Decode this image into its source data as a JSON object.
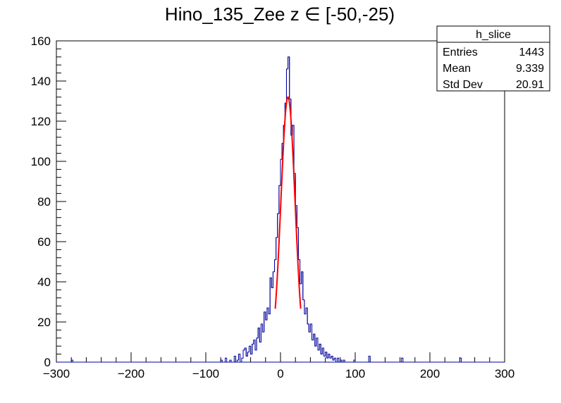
{
  "chart_data": {
    "type": "histogram",
    "title": "Hino_135_Zee z  ∈ [-50,-25)",
    "xlabel": "",
    "ylabel": "",
    "xlim": [
      -300,
      300
    ],
    "ylim": [
      0,
      160
    ],
    "x_ticks": [
      -300,
      -200,
      -100,
      0,
      100,
      200,
      300
    ],
    "x_tick_labels": [
      "−300",
      "−200",
      "−100",
      "0",
      "100",
      "200",
      "300"
    ],
    "y_ticks": [
      0,
      20,
      40,
      60,
      80,
      100,
      120,
      140,
      160
    ],
    "y_tick_labels": [
      "0",
      "20",
      "40",
      "60",
      "80",
      "100",
      "120",
      "140",
      "160"
    ],
    "histogram_color": "#000099",
    "fit_color": "#ff0000",
    "stats_box": {
      "name": "h_slice",
      "rows": [
        {
          "label": "Entries",
          "value": "1443"
        },
        {
          "label": "Mean",
          "value": "9.339"
        },
        {
          "label": "Std Dev",
          "value": "20.91"
        }
      ]
    },
    "bin_edges_range": [
      -300,
      300
    ],
    "bin_width": 2,
    "bins": [
      {
        "x": -280,
        "y": 1
      },
      {
        "x": -79,
        "y": 1
      },
      {
        "x": -73,
        "y": 2
      },
      {
        "x": -68,
        "y": 1
      },
      {
        "x": -62,
        "y": 3
      },
      {
        "x": -58,
        "y": 1
      },
      {
        "x": -55,
        "y": 4
      },
      {
        "x": -52,
        "y": 2
      },
      {
        "x": -50,
        "y": 6
      },
      {
        "x": -47,
        "y": 7
      },
      {
        "x": -45,
        "y": 3
      },
      {
        "x": -43,
        "y": 5
      },
      {
        "x": -41,
        "y": 8
      },
      {
        "x": -39,
        "y": 4
      },
      {
        "x": -37,
        "y": 9
      },
      {
        "x": -35,
        "y": 11
      },
      {
        "x": -33,
        "y": 6
      },
      {
        "x": -31,
        "y": 12
      },
      {
        "x": -29,
        "y": 17
      },
      {
        "x": -27,
        "y": 10
      },
      {
        "x": -25,
        "y": 19
      },
      {
        "x": -23,
        "y": 15
      },
      {
        "x": -21,
        "y": 25
      },
      {
        "x": -19,
        "y": 21
      },
      {
        "x": -17,
        "y": 27
      },
      {
        "x": -15,
        "y": 24
      },
      {
        "x": -13,
        "y": 42
      },
      {
        "x": -11,
        "y": 37
      },
      {
        "x": -9,
        "y": 45
      },
      {
        "x": -7,
        "y": 51
      },
      {
        "x": -5,
        "y": 62
      },
      {
        "x": -3,
        "y": 74
      },
      {
        "x": -1,
        "y": 88
      },
      {
        "x": 1,
        "y": 101
      },
      {
        "x": 3,
        "y": 109
      },
      {
        "x": 5,
        "y": 118
      },
      {
        "x": 7,
        "y": 129
      },
      {
        "x": 9,
        "y": 146
      },
      {
        "x": 11,
        "y": 152
      },
      {
        "x": 13,
        "y": 131
      },
      {
        "x": 15,
        "y": 113
      },
      {
        "x": 17,
        "y": 118
      },
      {
        "x": 19,
        "y": 94
      },
      {
        "x": 21,
        "y": 78
      },
      {
        "x": 23,
        "y": 67
      },
      {
        "x": 25,
        "y": 51
      },
      {
        "x": 27,
        "y": 39
      },
      {
        "x": 29,
        "y": 45
      },
      {
        "x": 31,
        "y": 31
      },
      {
        "x": 33,
        "y": 24
      },
      {
        "x": 35,
        "y": 27
      },
      {
        "x": 37,
        "y": 19
      },
      {
        "x": 39,
        "y": 15
      },
      {
        "x": 41,
        "y": 19
      },
      {
        "x": 43,
        "y": 11
      },
      {
        "x": 45,
        "y": 14
      },
      {
        "x": 47,
        "y": 8
      },
      {
        "x": 49,
        "y": 12
      },
      {
        "x": 51,
        "y": 6
      },
      {
        "x": 53,
        "y": 9
      },
      {
        "x": 55,
        "y": 4
      },
      {
        "x": 57,
        "y": 7
      },
      {
        "x": 59,
        "y": 3
      },
      {
        "x": 61,
        "y": 5
      },
      {
        "x": 63,
        "y": 2
      },
      {
        "x": 65,
        "y": 4
      },
      {
        "x": 67,
        "y": 2
      },
      {
        "x": 69,
        "y": 3
      },
      {
        "x": 71,
        "y": 1
      },
      {
        "x": 73,
        "y": 2
      },
      {
        "x": 77,
        "y": 2
      },
      {
        "x": 81,
        "y": 1
      },
      {
        "x": 85,
        "y": 1
      },
      {
        "x": 99,
        "y": 1
      },
      {
        "x": 119,
        "y": 3
      },
      {
        "x": 163,
        "y": 2
      },
      {
        "x": 241,
        "y": 2
      }
    ],
    "fit": {
      "function": "gaussian",
      "amplitude": 132,
      "mean": 10,
      "sigma": 9.5,
      "range": [
        -7,
        27
      ]
    }
  }
}
